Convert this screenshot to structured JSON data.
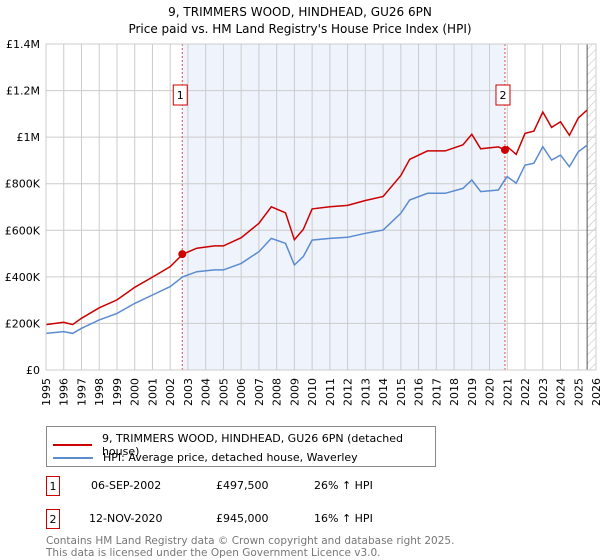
{
  "chart_data": {
    "type": "line",
    "title": "9, TRIMMERS WOOD, HINDHEAD, GU26 6PN",
    "subtitle": "Price paid vs. HM Land Registry's House Price Index (HPI)",
    "xlim": [
      1995,
      2026
    ],
    "ylim": [
      0,
      1400000
    ],
    "y_ticks": [
      {
        "v": 0,
        "label": "£0"
      },
      {
        "v": 200000,
        "label": "£200K"
      },
      {
        "v": 400000,
        "label": "£400K"
      },
      {
        "v": 600000,
        "label": "£600K"
      },
      {
        "v": 800000,
        "label": "£800K"
      },
      {
        "v": 1000000,
        "label": "£1M"
      },
      {
        "v": 1200000,
        "label": "£1.2M"
      },
      {
        "v": 1400000,
        "label": "£1.4M"
      }
    ],
    "x_ticks": [
      "1995",
      "1996",
      "1997",
      "1998",
      "1999",
      "2000",
      "2001",
      "2002",
      "2003",
      "2004",
      "2005",
      "2006",
      "2007",
      "2008",
      "2009",
      "2010",
      "2011",
      "2012",
      "2013",
      "2014",
      "2015",
      "2016",
      "2017",
      "2018",
      "2019",
      "2020",
      "2021",
      "2022",
      "2023",
      "2024",
      "2025",
      "2026"
    ],
    "grid": true,
    "projection_start": 2025.5,
    "series": [
      {
        "name": "9, TRIMMERS WOOD, HINDHEAD, GU26 6PN (detached house)",
        "color": "#cc0000",
        "x": [
          1995,
          1996,
          1996.5,
          1997,
          1998,
          1999,
          2000,
          2001,
          2002,
          2002.7,
          2003.5,
          2004.5,
          2005,
          2006,
          2007,
          2007.7,
          2008.5,
          2009,
          2009.5,
          2010,
          2011,
          2012,
          2013,
          2014,
          2015,
          2015.5,
          2016.5,
          2017.5,
          2018.5,
          2019,
          2019.5,
          2020.5,
          2020.87,
          2021,
          2021.5,
          2022,
          2022.5,
          2023,
          2023.5,
          2024,
          2024.5,
          2025,
          2025.5
        ],
        "y": [
          195,
          205,
          195,
          222,
          267,
          301,
          355,
          399,
          444,
          497,
          523,
          533,
          533,
          568,
          630,
          701,
          675,
          559,
          604,
          692,
          701,
          707,
          728,
          745,
          835,
          905,
          941,
          941,
          967,
          1012,
          950,
          958,
          945,
          959,
          926,
          1016,
          1026,
          1108,
          1042,
          1066,
          1008,
          1082,
          1116
        ]
      },
      {
        "name": "HPI: Average price, detached house, Waverley",
        "color": "#5b8bd0",
        "x": [
          1995,
          1996,
          1996.5,
          1997,
          1998,
          1999,
          2000,
          2001,
          2002,
          2002.7,
          2003.5,
          2004.5,
          2005,
          2006,
          2007,
          2007.7,
          2008.5,
          2009,
          2009.5,
          2010,
          2011,
          2012,
          2013,
          2014,
          2015,
          2015.5,
          2016.5,
          2017.5,
          2018.5,
          2019,
          2019.5,
          2020.5,
          2020.87,
          2021,
          2021.5,
          2022,
          2022.5,
          2023,
          2023.5,
          2024,
          2024.5,
          2025,
          2025.5
        ],
        "y": [
          157,
          165,
          157,
          179,
          215,
          243,
          286,
          322,
          358,
          400,
          422,
          430,
          430,
          458,
          508,
          565,
          544,
          451,
          487,
          558,
          565,
          570,
          587,
          601,
          673,
          730,
          759,
          759,
          780,
          816,
          766,
          773,
          818,
          830,
          802,
          880,
          888,
          959,
          902,
          923,
          873,
          937,
          966
        ]
      }
    ],
    "y_unit": "thousands GBP",
    "sales": [
      {
        "id": "1",
        "x": 2002.68,
        "y": 497.5
      },
      {
        "id": "2",
        "x": 2020.87,
        "y": 945
      }
    ]
  },
  "legend": {
    "red": "9, TRIMMERS WOOD, HINDHEAD, GU26 6PN (detached house)",
    "blue": "HPI: Average price, detached house, Waverley"
  },
  "transactions": [
    {
      "id": "1",
      "date": "06-SEP-2002",
      "price": "£497,500",
      "hpi": "26% ↑ HPI"
    },
    {
      "id": "2",
      "date": "12-NOV-2020",
      "price": "£945,000",
      "hpi": "16% ↑ HPI"
    }
  ],
  "footer": {
    "line1": "Contains HM Land Registry data © Crown copyright and database right 2025.",
    "line2": "This data is licensed under the Open Government Licence v3.0."
  }
}
